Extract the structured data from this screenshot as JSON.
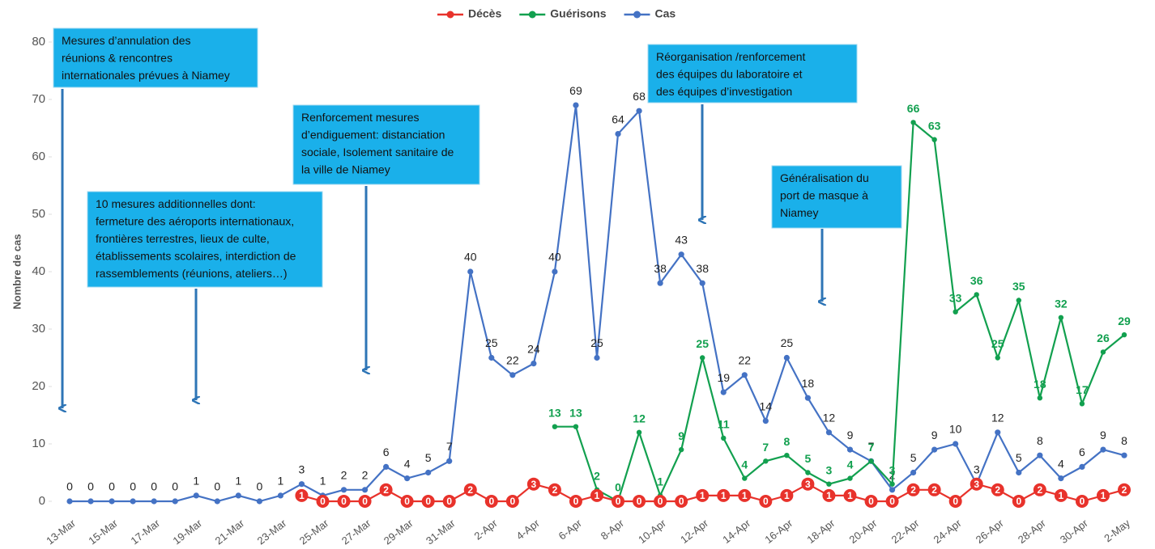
{
  "chart_data": {
    "type": "line",
    "ylabel": "Nombre de cas",
    "ylim": [
      0,
      80
    ],
    "yticks": [
      0,
      10,
      20,
      30,
      40,
      50,
      60,
      70,
      80
    ],
    "categories": [
      "13-Mar",
      null,
      "15-Mar",
      null,
      "17-Mar",
      null,
      "19-Mar",
      null,
      "21-Mar",
      null,
      "23-Mar",
      null,
      "25-Mar",
      null,
      "27-Mar",
      null,
      "29-Mar",
      null,
      "31-Mar",
      null,
      "2-Apr",
      null,
      "4-Apr",
      null,
      "6-Apr",
      null,
      "8-Apr",
      null,
      "10-Apr",
      null,
      "12-Apr",
      null,
      "14-Apr",
      null,
      "16-Apr",
      null,
      "18-Apr",
      null,
      "20-Apr",
      null,
      "22-Apr",
      null,
      "24-Apr",
      null,
      "26-Apr",
      null,
      "28-Apr",
      null,
      "30-Apr",
      null,
      "2-May"
    ],
    "series": [
      {
        "name": "Décès",
        "color": "#e8322b",
        "values": [
          null,
          null,
          null,
          null,
          null,
          null,
          null,
          null,
          null,
          null,
          null,
          1,
          0,
          0,
          0,
          2,
          0,
          0,
          0,
          2,
          0,
          0,
          3,
          2,
          0,
          1,
          0,
          0,
          0,
          0,
          1,
          1,
          1,
          0,
          1,
          3,
          1,
          1,
          0,
          0,
          2,
          2,
          0,
          3,
          2,
          0,
          2,
          1,
          0,
          1,
          2
        ]
      },
      {
        "name": "Guérisons",
        "color": "#12a04f",
        "values": [
          null,
          null,
          null,
          null,
          null,
          null,
          null,
          null,
          null,
          null,
          null,
          null,
          null,
          null,
          null,
          null,
          null,
          null,
          null,
          null,
          null,
          null,
          null,
          13,
          13,
          2,
          0,
          12,
          1,
          9,
          25,
          11,
          4,
          7,
          8,
          5,
          3,
          4,
          7,
          3,
          66,
          63,
          33,
          36,
          25,
          35,
          18,
          32,
          17,
          26,
          29
        ]
      },
      {
        "name": "Cas",
        "color": "#4472c4",
        "values": [
          0,
          0,
          0,
          0,
          0,
          0,
          1,
          0,
          1,
          0,
          1,
          3,
          1,
          2,
          2,
          6,
          4,
          5,
          7,
          40,
          25,
          22,
          24,
          40,
          69,
          25,
          64,
          68,
          38,
          43,
          38,
          19,
          22,
          14,
          25,
          18,
          12,
          9,
          7,
          2,
          5,
          9,
          10,
          3,
          12,
          5,
          8,
          4,
          6,
          9,
          8
        ]
      }
    ],
    "legend": "top",
    "annotations": [
      {
        "lines": [
          "Mesures d’annulation des",
          "réunions & rencontres",
          "internationales prévues à Niamey"
        ]
      },
      {
        "lines": [
          "10 mesures additionnelles dont:",
          "fermeture  des aéroports internationaux,",
          "frontières terrestres, lieux de culte,",
          "établissements scolaires, interdiction de",
          "rassemblements (réunions, ateliers…)"
        ]
      },
      {
        "lines": [
          "Renforcement mesures",
          "d’endiguement: distanciation",
          "sociale, Isolement sanitaire de",
          "la ville de Niamey"
        ]
      },
      {
        "lines": [
          "Réorganisation /renforcement",
          "des équipes du laboratoire et",
          "des équipes d’investigation"
        ]
      },
      {
        "lines": [
          "Généralisation du",
          "port de masque à",
          "Niamey"
        ]
      }
    ]
  }
}
